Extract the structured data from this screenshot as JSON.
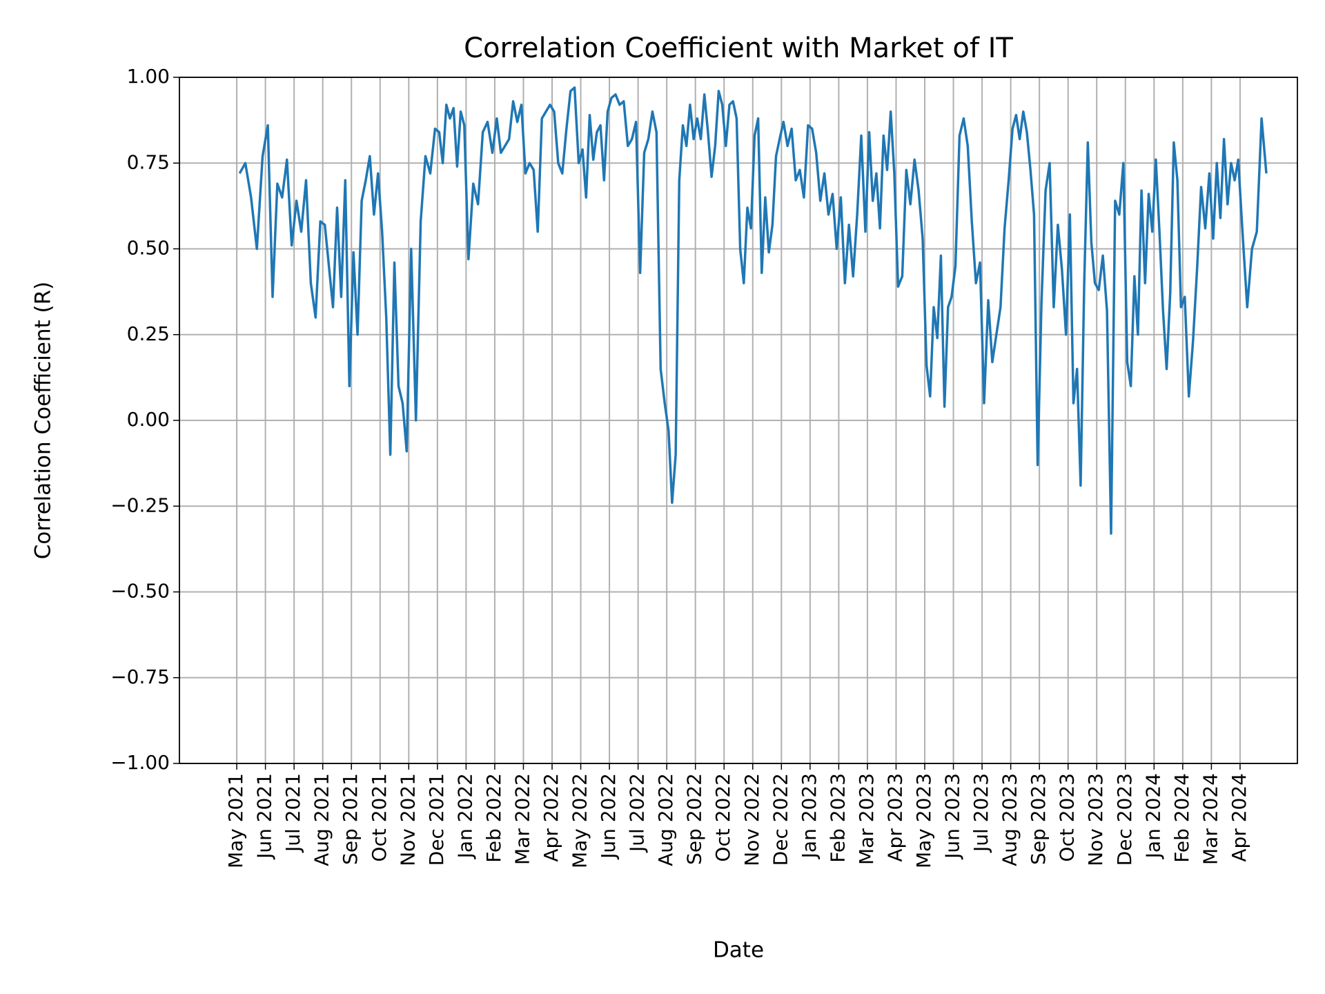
{
  "chart_data": {
    "type": "line",
    "title": "Correlation Coefficient with Market of IT",
    "xlabel": "Date",
    "ylabel": "Correlation Coefficient (R)",
    "color": "#1f77b4",
    "grid": true,
    "xlim": [
      "2021-03",
      "2024-06"
    ],
    "ylim": [
      -1,
      1
    ],
    "yticks": [
      {
        "value": -1,
        "label": "−1.00"
      },
      {
        "value": -0.75,
        "label": "−0.75"
      },
      {
        "value": -0.5,
        "label": "−0.50"
      },
      {
        "value": -0.25,
        "label": "−0.25"
      },
      {
        "value": 0,
        "label": "0.00"
      },
      0.25,
      {
        "value": 0.5,
        "label": "0.50"
      },
      0.75,
      {
        "value": 1,
        "label": "1.00"
      }
    ],
    "xticks": [
      {
        "value": "2021-05",
        "label": "May 2021"
      },
      {
        "value": "2021-06",
        "label": "Jun 2021"
      },
      {
        "value": "2021-07",
        "label": "Jul 2021"
      },
      {
        "value": "2021-08",
        "label": "Aug 2021"
      },
      {
        "value": "2021-09",
        "label": "Sep 2021"
      },
      {
        "value": "2021-10",
        "label": "Oct 2021"
      },
      {
        "value": "2021-11",
        "label": "Nov 2021"
      },
      {
        "value": "2021-12",
        "label": "Dec 2021"
      },
      {
        "value": "2022-01",
        "label": "Jan 2022"
      },
      {
        "value": "2022-02",
        "label": "Feb 2022"
      },
      {
        "value": "2022-03",
        "label": "Mar 2022"
      },
      {
        "value": "2022-04",
        "label": "Apr 2022"
      },
      {
        "value": "2022-05",
        "label": "May 2022"
      },
      {
        "value": "2022-06",
        "label": "Jun 2022"
      },
      {
        "value": "2022-07",
        "label": "Jul 2022"
      },
      {
        "value": "2022-08",
        "label": "Aug 2022"
      },
      {
        "value": "2022-09",
        "label": "Sep 2022"
      },
      {
        "value": "2022-10",
        "label": "Oct 2022"
      },
      {
        "value": "2022-11",
        "label": "Nov 2022"
      },
      {
        "value": "2022-12",
        "label": "Dec 2022"
      },
      {
        "value": "2023-01",
        "label": "Jan 2023"
      },
      {
        "value": "2023-02",
        "label": "Feb 2023"
      },
      {
        "value": "2023-03",
        "label": "Mar 2023"
      },
      {
        "value": "2023-04",
        "label": "Apr 2023"
      },
      {
        "value": "2023-05",
        "label": "May 2023"
      },
      {
        "value": "2023-06",
        "label": "Jun 2023"
      },
      {
        "value": "2023-07",
        "label": "Jul 2023"
      },
      {
        "value": "2023-08",
        "label": "Aug 2023"
      },
      {
        "value": "2023-09",
        "label": "Sep 2023"
      },
      {
        "value": "2023-10",
        "label": "Oct 2023"
      },
      {
        "value": "2023-11",
        "label": "Nov 2023"
      },
      {
        "value": "2023-12",
        "label": "Dec 2023"
      },
      {
        "value": "2024-01",
        "label": "Jan 2024"
      },
      {
        "value": "2024-02",
        "label": "Feb 2024"
      },
      {
        "value": "2024-03",
        "label": "Mar 2024"
      },
      {
        "value": "2024-04",
        "label": "Apr 2024"
      }
    ],
    "x": [
      "2021-05",
      "2021-05",
      "2021-05",
      "2021-05",
      "2021-05",
      "2021-06",
      "2021-06",
      "2021-06",
      "2021-06",
      "2021-06",
      "2021-06",
      "2021-07",
      "2021-07",
      "2021-07",
      "2021-07",
      "2021-07",
      "2021-07",
      "2021-08",
      "2021-08",
      "2021-08",
      "2021-08",
      "2021-08",
      "2021-08",
      "2021-08",
      "2021-09",
      "2021-09",
      "2021-09",
      "2021-09",
      "2021-09",
      "2021-09",
      "2021-09",
      "2021-10",
      "2021-10",
      "2021-10",
      "2021-10",
      "2021-10",
      "2021-10",
      "2021-10",
      "2021-11",
      "2021-11",
      "2021-11",
      "2021-11",
      "2021-11",
      "2021-11",
      "2021-12",
      "2021-12",
      "2021-12",
      "2021-12",
      "2021-12",
      "2021-12",
      "2021-12",
      "2021-12",
      "2022-01",
      "2022-01",
      "2022-01",
      "2022-01",
      "2022-01",
      "2022-01",
      "2022-02",
      "2022-02",
      "2022-02",
      "2022-02",
      "2022-02",
      "2022-02",
      "2022-02",
      "2022-03",
      "2022-03",
      "2022-03",
      "2022-03",
      "2022-03",
      "2022-03",
      "2022-03",
      "2022-04",
      "2022-04",
      "2022-04",
      "2022-04",
      "2022-04",
      "2022-04",
      "2022-04",
      "2022-05",
      "2022-05",
      "2022-05",
      "2022-05",
      "2022-05",
      "2022-05",
      "2022-05",
      "2022-05",
      "2022-06",
      "2022-06",
      "2022-06",
      "2022-06",
      "2022-06",
      "2022-06",
      "2022-06",
      "2022-07",
      "2022-07",
      "2022-07",
      "2022-07",
      "2022-07",
      "2022-07",
      "2022-07",
      "2022-08",
      "2022-08",
      "2022-08",
      "2022-08",
      "2022-08",
      "2022-08",
      "2022-08",
      "2022-08",
      "2022-09",
      "2022-09",
      "2022-09",
      "2022-09",
      "2022-09",
      "2022-09",
      "2022-09",
      "2022-09",
      "2022-10",
      "2022-10",
      "2022-10",
      "2022-10",
      "2022-10",
      "2022-10",
      "2022-10",
      "2022-10",
      "2022-11",
      "2022-11",
      "2022-11",
      "2022-11",
      "2022-11",
      "2022-11",
      "2022-11",
      "2022-11",
      "2022-12",
      "2022-12",
      "2022-12",
      "2022-12",
      "2022-12",
      "2022-12",
      "2022-12",
      "2023-01",
      "2023-01",
      "2023-01",
      "2023-01",
      "2023-01",
      "2023-01",
      "2023-01",
      "2023-02",
      "2023-02",
      "2023-02",
      "2023-02",
      "2023-02",
      "2023-02",
      "2023-02",
      "2023-03",
      "2023-03",
      "2023-03",
      "2023-03",
      "2023-03",
      "2023-03",
      "2023-03",
      "2023-03",
      "2023-04",
      "2023-04",
      "2023-04",
      "2023-04",
      "2023-04",
      "2023-04",
      "2023-04",
      "2023-05",
      "2023-05",
      "2023-05",
      "2023-05",
      "2023-05",
      "2023-05",
      "2023-05",
      "2023-05",
      "2023-06",
      "2023-06",
      "2023-06",
      "2023-06",
      "2023-06",
      "2023-06",
      "2023-06",
      "2023-07",
      "2023-07",
      "2023-07",
      "2023-07",
      "2023-07",
      "2023-07",
      "2023-07",
      "2023-08",
      "2023-08",
      "2023-08",
      "2023-08",
      "2023-08",
      "2023-08",
      "2023-08",
      "2023-08",
      "2023-09",
      "2023-09",
      "2023-09",
      "2023-09",
      "2023-09",
      "2023-09",
      "2023-09",
      "2023-10",
      "2023-10",
      "2023-10",
      "2023-10",
      "2023-10",
      "2023-10",
      "2023-10",
      "2023-10",
      "2023-11",
      "2023-11",
      "2023-11",
      "2023-11",
      "2023-11",
      "2023-11",
      "2023-11",
      "2023-12",
      "2023-12",
      "2023-12",
      "2023-12",
      "2023-12",
      "2023-12",
      "2023-12",
      "2023-12",
      "2024-01",
      "2024-01",
      "2024-01",
      "2024-01",
      "2024-01",
      "2024-01",
      "2024-01",
      "2024-01",
      "2024-02",
      "2024-02",
      "2024-02",
      "2024-02",
      "2024-02",
      "2024-02",
      "2024-02",
      "2024-03",
      "2024-03",
      "2024-03",
      "2024-03",
      "2024-03",
      "2024-03",
      "2024-03",
      "2024-03",
      "2024-04",
      "2024-04",
      "2024-04",
      "2024-04",
      "2024-04",
      "2024-04"
    ],
    "values": [
      0.72,
      0.75,
      0.65,
      0.5,
      0.77,
      0.86,
      0.36,
      0.69,
      0.65,
      0.76,
      0.51,
      0.64,
      0.55,
      0.7,
      0.4,
      0.3,
      0.58,
      0.57,
      0.45,
      0.33,
      0.62,
      0.36,
      0.7,
      0.1,
      0.49,
      0.25,
      0.64,
      0.7,
      0.77,
      0.6,
      0.72,
      0.55,
      0.3,
      -0.1,
      0.46,
      0.1,
      0.05,
      -0.09,
      0.5,
      0.0,
      0.58,
      0.77,
      0.72,
      0.85,
      0.84,
      0.75,
      0.92,
      0.88,
      0.91,
      0.74,
      0.9,
      0.86,
      0.47,
      0.69,
      0.63,
      0.84,
      0.87,
      0.78,
      0.88,
      0.78,
      0.8,
      0.82,
      0.93,
      0.87,
      0.92,
      0.72,
      0.75,
      0.73,
      0.55,
      0.88,
      0.9,
      0.92,
      0.9,
      0.75,
      0.72,
      0.85,
      0.96,
      0.97,
      0.75,
      0.79,
      0.65,
      0.89,
      0.76,
      0.84,
      0.86,
      0.7,
      0.9,
      0.94,
      0.95,
      0.92,
      0.93,
      0.8,
      0.82,
      0.87,
      0.43,
      0.78,
      0.82,
      0.9,
      0.84,
      0.15,
      0.05,
      -0.03,
      -0.24,
      -0.1,
      0.7,
      0.86,
      0.8,
      0.92,
      0.82,
      0.88,
      0.82,
      0.95,
      0.84,
      0.71,
      0.8,
      0.96,
      0.92,
      0.8,
      0.92,
      0.93,
      0.88,
      0.5,
      0.4,
      0.62,
      0.56,
      0.83,
      0.88,
      0.43,
      0.65,
      0.49,
      0.57,
      0.77,
      0.82,
      0.87,
      0.8,
      0.85,
      0.7,
      0.73,
      0.65,
      0.86,
      0.85,
      0.78,
      0.64,
      0.72,
      0.6,
      0.66,
      0.5,
      0.65,
      0.4,
      0.57,
      0.42,
      0.6,
      0.83,
      0.55,
      0.84,
      0.64,
      0.72,
      0.56,
      0.83,
      0.73,
      0.9,
      0.72,
      0.39,
      0.42,
      0.73,
      0.63,
      0.76,
      0.67,
      0.53,
      0.16,
      0.07,
      0.33,
      0.24,
      0.48,
      0.04,
      0.33,
      0.36,
      0.45,
      0.83,
      0.88,
      0.8,
      0.58,
      0.4,
      0.46,
      0.05,
      0.35,
      0.17,
      0.25,
      0.33,
      0.56,
      0.7,
      0.85,
      0.89,
      0.82,
      0.9,
      0.84,
      0.73,
      0.6,
      -0.13,
      0.34,
      0.67,
      0.75,
      0.33,
      0.57,
      0.44,
      0.25,
      0.6,
      0.05,
      0.15,
      -0.19,
      0.4,
      0.81,
      0.52,
      0.4,
      0.38,
      0.48,
      0.32,
      -0.33,
      0.64,
      0.6,
      0.75,
      0.17,
      0.1,
      0.42,
      0.25,
      0.67,
      0.4,
      0.66,
      0.55,
      0.76,
      0.55,
      0.32,
      0.15,
      0.37,
      0.81,
      0.7,
      0.33,
      0.36,
      0.07,
      0.23,
      0.44,
      0.68,
      0.56,
      0.72,
      0.53,
      0.75,
      0.59,
      0.82,
      0.63,
      0.75,
      0.7,
      0.76,
      0.55,
      0.33,
      0.5,
      0.55,
      0.88,
      0.72
    ]
  }
}
